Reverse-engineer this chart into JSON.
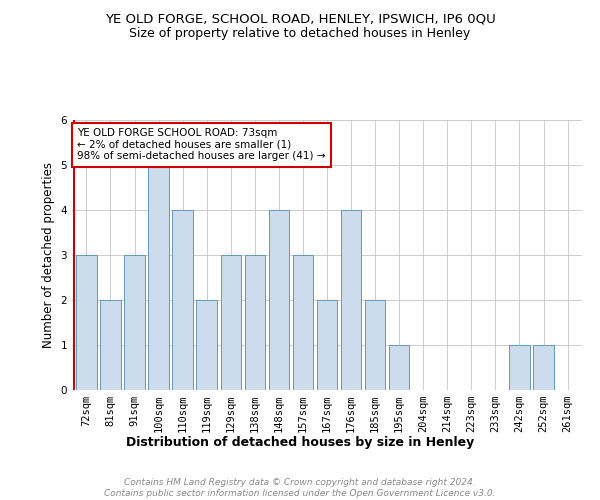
{
  "title1": "YE OLD FORGE, SCHOOL ROAD, HENLEY, IPSWICH, IP6 0QU",
  "title2": "Size of property relative to detached houses in Henley",
  "xlabel": "Distribution of detached houses by size in Henley",
  "ylabel": "Number of detached properties",
  "categories": [
    "72sqm",
    "81sqm",
    "91sqm",
    "100sqm",
    "110sqm",
    "119sqm",
    "129sqm",
    "138sqm",
    "148sqm",
    "157sqm",
    "167sqm",
    "176sqm",
    "185sqm",
    "195sqm",
    "204sqm",
    "214sqm",
    "223sqm",
    "233sqm",
    "242sqm",
    "252sqm",
    "261sqm"
  ],
  "values": [
    3,
    2,
    3,
    5,
    4,
    2,
    3,
    3,
    4,
    3,
    2,
    4,
    2,
    1,
    0,
    0,
    0,
    0,
    1,
    1,
    0
  ],
  "bar_color": "#ccdcec",
  "bar_edge_color": "#6699bb",
  "annotation_text": "YE OLD FORGE SCHOOL ROAD: 73sqm\n← 2% of detached houses are smaller (1)\n98% of semi-detached houses are larger (41) →",
  "annotation_box_edge": "#cc0000",
  "vline_color": "#cc0000",
  "ylim": [
    0,
    6
  ],
  "yticks": [
    0,
    1,
    2,
    3,
    4,
    5,
    6
  ],
  "footnote": "Contains HM Land Registry data © Crown copyright and database right 2024.\nContains public sector information licensed under the Open Government Licence v3.0.",
  "background_color": "#ffffff",
  "title1_fontsize": 9.5,
  "title2_fontsize": 9,
  "xlabel_fontsize": 9,
  "ylabel_fontsize": 8.5,
  "tick_fontsize": 7.5,
  "annotation_fontsize": 7.5,
  "footnote_fontsize": 6.5
}
